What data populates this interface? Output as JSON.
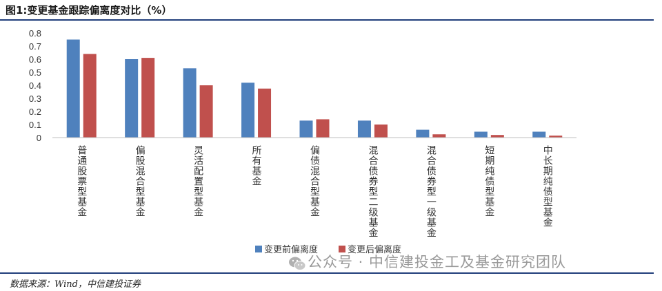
{
  "figure": {
    "title": "图1:变更基金跟踪偏离度对比（%）",
    "source": "数据来源：Wind，中信建投证券",
    "watermark": "公众号 · 中信建投金工及基金研究团队",
    "watermark_icon": "wechat-icon"
  },
  "chart_data": {
    "type": "bar",
    "title": "",
    "xlabel": "",
    "ylabel": "",
    "ylim": [
      0,
      0.8
    ],
    "yticks": [
      "0.8",
      "0.7",
      "0.6",
      "0.5",
      "0.4",
      "0.3",
      "0.2",
      "0.1",
      "0"
    ],
    "grid": false,
    "legend_position": "bottom",
    "categories": [
      "普通股票型基金",
      "偏股混合型基金",
      "灵活配置型基金",
      "所有基金",
      "偏债混合型基金",
      "混合债券型二级基金",
      "混合债券型一级基金",
      "短期纯债型基金",
      "中长期纯债型基金"
    ],
    "series": [
      {
        "name": "变更前偏离度",
        "color": "#4f81bd",
        "values": [
          0.75,
          0.6,
          0.53,
          0.42,
          0.13,
          0.13,
          0.06,
          0.045,
          0.045
        ]
      },
      {
        "name": "变更后偏离度",
        "color": "#c0504d",
        "values": [
          0.64,
          0.61,
          0.4,
          0.375,
          0.14,
          0.1,
          0.025,
          0.02,
          0.015
        ]
      }
    ]
  }
}
